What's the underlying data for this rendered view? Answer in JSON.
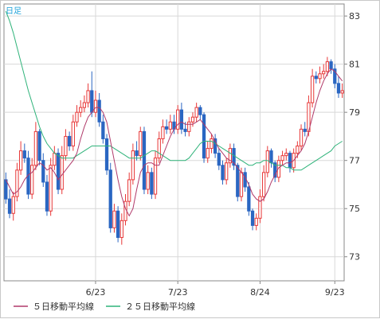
{
  "period_label": "日足",
  "colors": {
    "up": "#e83838",
    "down": "#2a66c2",
    "ma5": "#b03a6a",
    "ma25": "#2fb37a",
    "grid": "#d8d8d8",
    "axis": "#888888"
  },
  "legend": {
    "ma5": "５日移動平均線",
    "ma25": "２５日移動平均線"
  },
  "chart_data": {
    "type": "candlestick",
    "ylim": [
      72.0,
      83.5
    ],
    "yticks": [
      83,
      81,
      79,
      77,
      75,
      73
    ],
    "xticks": [
      {
        "label": "6/23",
        "index": 24
      },
      {
        "label": "7/23",
        "index": 46
      },
      {
        "label": "8/24",
        "index": 68
      },
      {
        "label": "9/23",
        "index": 88
      }
    ],
    "grid": true,
    "num_bars": 91,
    "open": [
      76.2,
      75.4,
      74.8,
      75.5,
      76.6,
      77.4,
      77.1,
      75.6,
      76.8,
      78.2,
      77.0,
      76.1,
      74.9,
      76.8,
      77.3,
      75.8,
      77.2,
      78.0,
      77.6,
      78.6,
      79.0,
      79.2,
      79.4,
      79.9,
      79.0,
      79.5,
      78.6,
      77.9,
      76.6,
      74.2,
      74.9,
      73.8,
      74.5,
      75.3,
      76.2,
      77.4,
      77.2,
      78.2,
      75.8,
      76.5,
      75.6,
      77.1,
      77.9,
      78.4,
      78.3,
      78.6,
      78.3,
      79.1,
      78.3,
      78.2,
      78.6,
      78.8,
      79.2,
      78.9,
      77.1,
      77.5,
      77.9,
      77.3,
      76.8,
      76.2,
      76.9,
      77.5,
      76.8,
      75.5,
      76.5,
      75.9,
      74.9,
      74.3,
      74.6,
      75.5,
      76.5,
      77.4,
      76.9,
      76.3,
      77.0,
      77.2,
      77.3,
      76.7,
      77.3,
      77.6,
      78.3,
      78.2,
      79.4,
      80.5,
      80.4,
      80.6,
      80.7,
      81.1,
      80.8,
      80.2,
      79.8
    ],
    "close": [
      75.4,
      74.8,
      75.5,
      76.6,
      77.4,
      77.1,
      75.6,
      76.8,
      78.2,
      77.0,
      76.1,
      74.9,
      76.8,
      77.3,
      75.8,
      77.2,
      78.0,
      77.6,
      78.6,
      79.0,
      79.2,
      79.4,
      79.9,
      79.0,
      79.5,
      78.6,
      77.9,
      76.6,
      74.2,
      74.9,
      73.8,
      74.5,
      75.3,
      76.2,
      77.4,
      77.2,
      78.2,
      75.8,
      76.5,
      75.6,
      77.1,
      77.9,
      78.4,
      78.3,
      78.6,
      78.3,
      79.1,
      78.3,
      78.2,
      78.6,
      78.8,
      79.2,
      78.9,
      77.1,
      77.5,
      77.9,
      77.3,
      76.8,
      76.2,
      76.9,
      77.5,
      76.8,
      75.5,
      76.5,
      75.9,
      74.9,
      74.3,
      74.6,
      75.5,
      76.5,
      77.4,
      76.9,
      76.3,
      77.0,
      77.2,
      77.3,
      76.7,
      77.3,
      77.6,
      78.3,
      78.2,
      79.4,
      80.5,
      80.4,
      80.6,
      80.7,
      81.1,
      80.8,
      80.2,
      79.8,
      79.9
    ],
    "high": [
      76.5,
      75.8,
      75.7,
      76.9,
      77.8,
      77.7,
      77.4,
      77.1,
      78.6,
      78.3,
      77.3,
      76.4,
      77.1,
      77.6,
      77.5,
      77.6,
      78.3,
      78.2,
      78.9,
      79.3,
      79.5,
      79.7,
      80.2,
      80.7,
      79.9,
      79.8,
      78.9,
      78.1,
      76.9,
      75.2,
      75.1,
      74.8,
      75.6,
      76.5,
      77.7,
      77.8,
      78.4,
      78.4,
      76.8,
      76.7,
      77.4,
      78.2,
      78.7,
      78.7,
      78.9,
      78.9,
      79.3,
      79.4,
      78.6,
      78.8,
      79.0,
      79.4,
      79.3,
      79.0,
      77.8,
      78.1,
      78.1,
      77.5,
      77.0,
      77.1,
      77.7,
      77.7,
      76.9,
      76.7,
      76.7,
      76.1,
      75.0,
      74.8,
      75.8,
      76.8,
      77.6,
      77.5,
      77.0,
      77.2,
      77.4,
      77.5,
      77.4,
      77.5,
      77.8,
      78.5,
      78.6,
      79.7,
      80.8,
      80.7,
      80.9,
      81.0,
      81.3,
      81.2,
      81.0,
      80.5,
      80.2
    ],
    "low": [
      75.2,
      74.6,
      74.5,
      75.3,
      76.4,
      76.9,
      75.4,
      75.4,
      76.6,
      76.8,
      75.9,
      74.7,
      74.7,
      76.6,
      75.6,
      75.6,
      77.0,
      77.4,
      77.4,
      78.4,
      78.8,
      79.0,
      79.2,
      78.8,
      78.8,
      78.4,
      77.7,
      76.4,
      74.0,
      74.0,
      73.6,
      73.5,
      74.3,
      75.1,
      76.0,
      77.0,
      77.0,
      75.6,
      75.6,
      75.4,
      75.4,
      76.9,
      77.7,
      78.1,
      78.1,
      78.1,
      78.1,
      78.1,
      78.0,
      78.0,
      78.4,
      78.6,
      78.7,
      76.9,
      76.9,
      77.3,
      77.1,
      76.6,
      76.0,
      76.0,
      76.7,
      76.6,
      75.3,
      75.3,
      75.7,
      74.7,
      74.1,
      74.1,
      74.4,
      75.3,
      76.3,
      76.7,
      76.1,
      76.1,
      76.8,
      77.0,
      76.5,
      76.5,
      77.1,
      77.4,
      78.0,
      78.0,
      79.2,
      80.2,
      80.2,
      80.4,
      80.5,
      80.6,
      80.0,
      79.6,
      79.6
    ],
    "ma5": [
      76.2,
      75.9,
      75.6,
      75.7,
      75.9,
      76.2,
      76.4,
      76.5,
      76.7,
      76.9,
      76.8,
      76.6,
      76.7,
      76.5,
      76.2,
      76.4,
      76.6,
      76.8,
      77.0,
      77.3,
      77.9,
      78.4,
      78.8,
      79.0,
      79.2,
      79.2,
      79.0,
      78.6,
      77.8,
      77.0,
      76.2,
      75.5,
      75.0,
      74.7,
      75.0,
      75.8,
      76.5,
      76.8,
      76.9,
      76.9,
      76.8,
      76.8,
      77.2,
      77.6,
      78.0,
      78.3,
      78.5,
      78.6,
      78.5,
      78.5,
      78.5,
      78.6,
      78.7,
      78.5,
      78.3,
      78.1,
      77.8,
      77.5,
      77.3,
      77.1,
      77.0,
      76.9,
      76.7,
      76.5,
      76.3,
      76.0,
      75.6,
      75.4,
      75.3,
      75.4,
      75.7,
      76.1,
      76.4,
      76.7,
      76.8,
      76.9,
      76.9,
      77.0,
      77.2,
      77.4,
      77.7,
      78.2,
      78.8,
      79.4,
      79.9,
      80.3,
      80.6,
      80.8,
      80.7,
      80.5,
      80.3
    ],
    "ma25": [
      83.2,
      82.8,
      82.3,
      81.7,
      81.1,
      80.5,
      79.9,
      79.4,
      78.9,
      78.4,
      78.0,
      77.7,
      77.5,
      77.3,
      77.2,
      77.1,
      77.1,
      77.1,
      77.1,
      77.2,
      77.3,
      77.4,
      77.5,
      77.6,
      77.6,
      77.6,
      77.6,
      77.6,
      77.6,
      77.5,
      77.4,
      77.3,
      77.2,
      77.1,
      77.1,
      77.1,
      77.1,
      77.2,
      77.3,
      77.4,
      77.4,
      77.3,
      77.2,
      77.1,
      77.0,
      77.0,
      77.0,
      77.0,
      77.0,
      77.1,
      77.3,
      77.5,
      77.7,
      77.8,
      77.8,
      77.8,
      77.7,
      77.6,
      77.5,
      77.4,
      77.3,
      77.2,
      77.1,
      77.0,
      76.9,
      76.8,
      76.8,
      76.9,
      76.9,
      77.0,
      77.0,
      76.9,
      76.8,
      76.8,
      76.8,
      76.7,
      76.7,
      76.6,
      76.6,
      76.6,
      76.7,
      76.8,
      76.9,
      77.0,
      77.1,
      77.2,
      77.3,
      77.4,
      77.6,
      77.7,
      77.8
    ]
  }
}
